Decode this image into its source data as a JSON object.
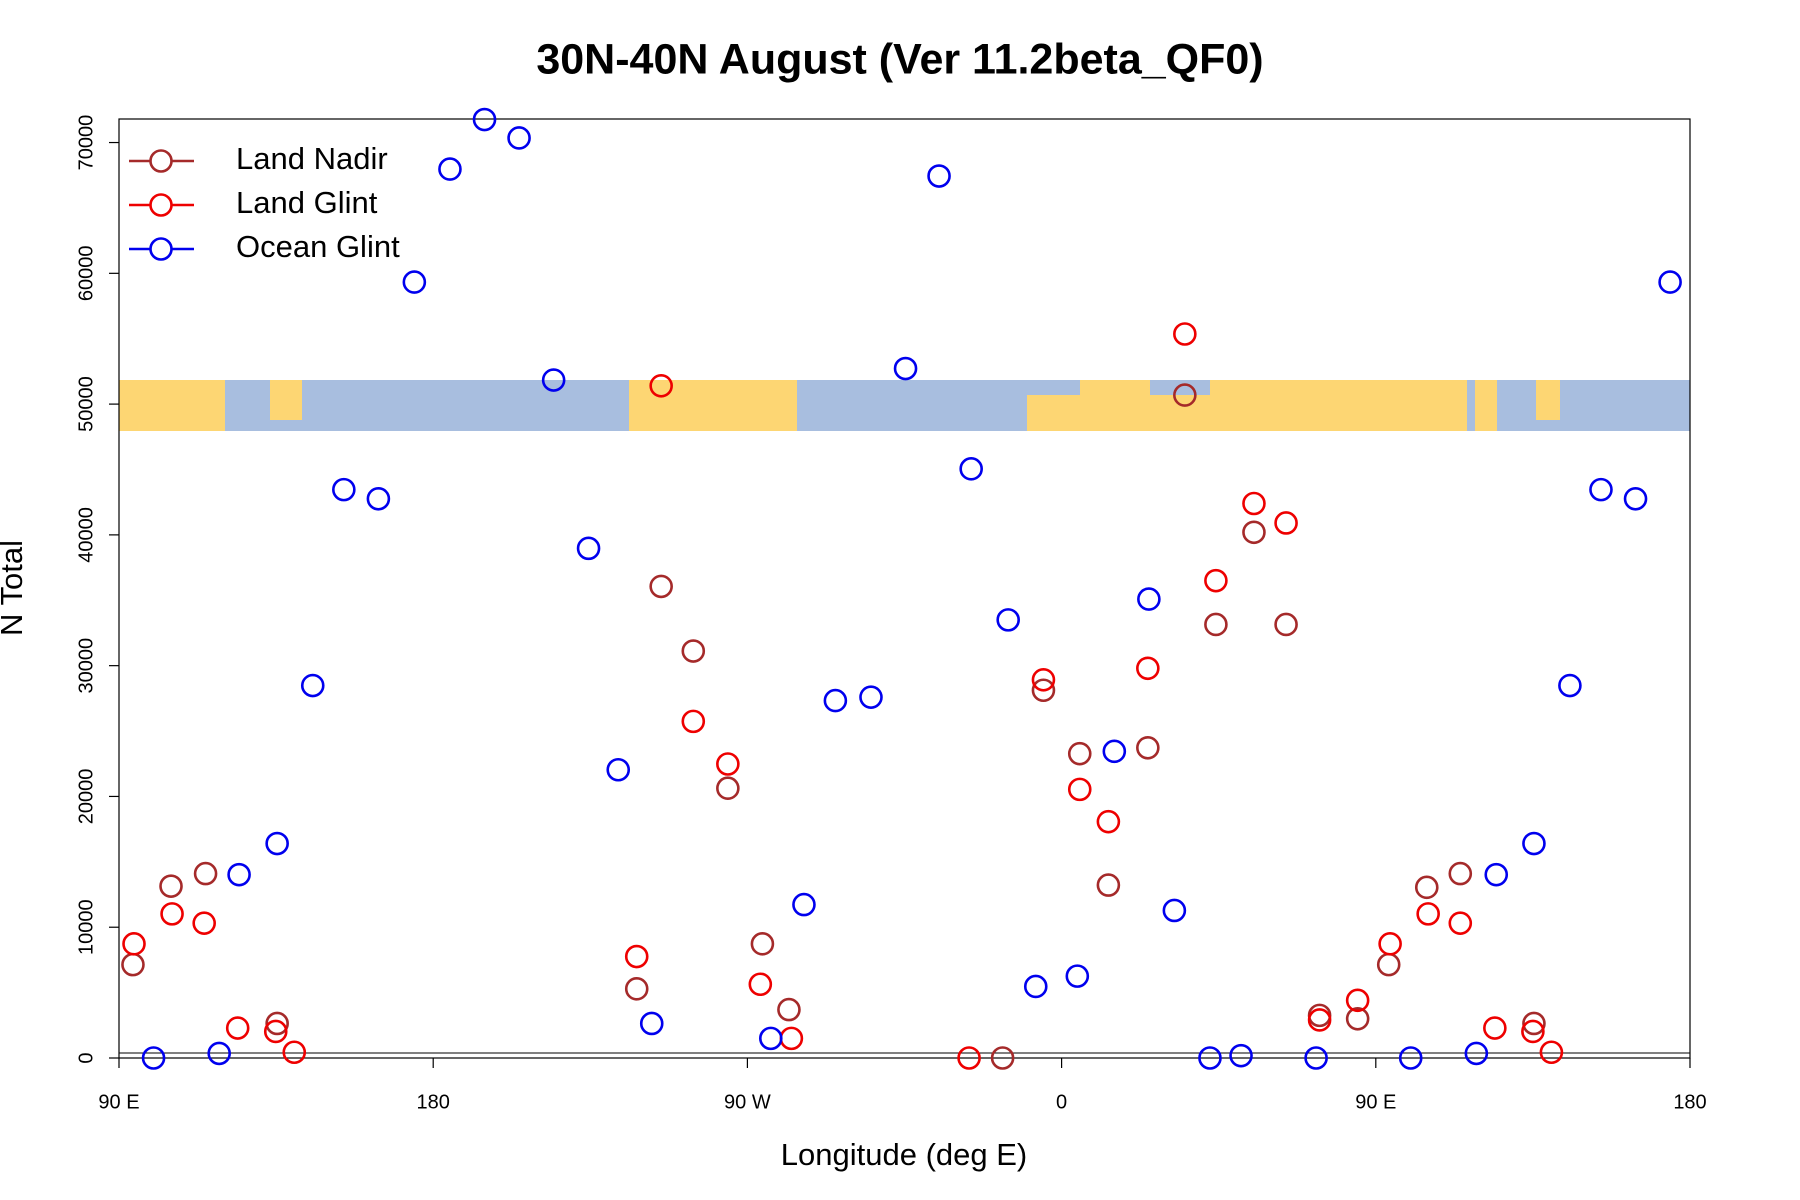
{
  "chart_data": {
    "type": "scatter",
    "title": "30N-40N August (Ver 11.2beta_QF0)",
    "xlabel": "Longitude (deg E)",
    "ylabel": "N Total",
    "xlim": [
      90,
      540
    ],
    "ylim": [
      0,
      71800
    ],
    "xticks": [
      {
        "value": 90,
        "label": "90 E"
      },
      180,
      {
        "value": 270,
        "label": "90 W"
      },
      {
        "value": 360,
        "label": "0"
      },
      {
        "value": 450,
        "label": "90 E"
      },
      {
        "value": 540,
        "label": "180"
      }
    ],
    "yticks": [
      0,
      10000,
      20000,
      30000,
      40000,
      50000,
      60000,
      70000
    ],
    "legend": "top-left",
    "series": [
      {
        "name": "Land Nadir",
        "color": "#a52a2a",
        "x": [
          94,
          104.9,
          114.8,
          135.3,
          245.3,
          254.5,
          264.4,
          238.3,
          274.3,
          281.9,
          343.1,
          354.8,
          365.2,
          373.4,
          384.7,
          395.3,
          404.2,
          415.1,
          424.3,
          433.9,
          444.8,
          453.7,
          464.6,
          474.2,
          495.3
        ],
        "values": [
          7140,
          13140,
          14100,
          2640,
          36060,
          31120,
          20630,
          5290,
          8730,
          3700,
          0,
          28120,
          23270,
          13220,
          23720,
          50690,
          33150,
          40200,
          33150,
          3260,
          3000,
          7140,
          13050,
          14100,
          2640
        ]
      },
      {
        "name": "Land Glint",
        "color": "#ee0000",
        "x": [
          94.3,
          105.2,
          114.4,
          124.0,
          134.9,
          140.2,
          245.3,
          238.3,
          254.5,
          264.4,
          273.7,
          282.6,
          333.5,
          354.8,
          365.2,
          373.4,
          384.7,
          395.3,
          404.2,
          415.1,
          424.3,
          433.9,
          444.8,
          454.1,
          465.0,
          474.2,
          484.1,
          495.0,
          500.3
        ],
        "values": [
          8730,
          11020,
          10310,
          2290,
          2030,
          440,
          51400,
          7760,
          25740,
          22480,
          5640,
          1500,
          0,
          28920,
          20540,
          18070,
          29800,
          55360,
          36500,
          42400,
          40910,
          2910,
          4410,
          8730,
          11020,
          10310,
          2290,
          2030,
          440
        ]
      },
      {
        "name": "Ocean Glint",
        "color": "#0000ee",
        "x": [
          99.9,
          118.7,
          124.4,
          135.3,
          145.5,
          154.4,
          164.3,
          174.6,
          184.8,
          194.7,
          204.6,
          214.5,
          224.5,
          233.0,
          242.6,
          276.7,
          286.2,
          295.2,
          305.4,
          315.3,
          324.9,
          334.1,
          344.7,
          352.6,
          364.5,
          375.1,
          385.0,
          392.3,
          402.5,
          411.4,
          432.9,
          460.0,
          478.8,
          484.5,
          495.3,
          505.6,
          514.5,
          524.4,
          534.3
        ],
        "values": [
          0,
          350,
          14020,
          16400,
          28480,
          43460,
          42760,
          59330,
          67970,
          71760,
          70350,
          51840,
          38970,
          22040,
          2640,
          1500,
          11730,
          27330,
          27590,
          52720,
          67440,
          45050,
          33500,
          5470,
          6260,
          23450,
          35090,
          11280,
          0,
          180,
          0,
          0,
          350,
          14020,
          16400,
          28480,
          43460,
          42760,
          59330
        ]
      }
    ]
  }
}
